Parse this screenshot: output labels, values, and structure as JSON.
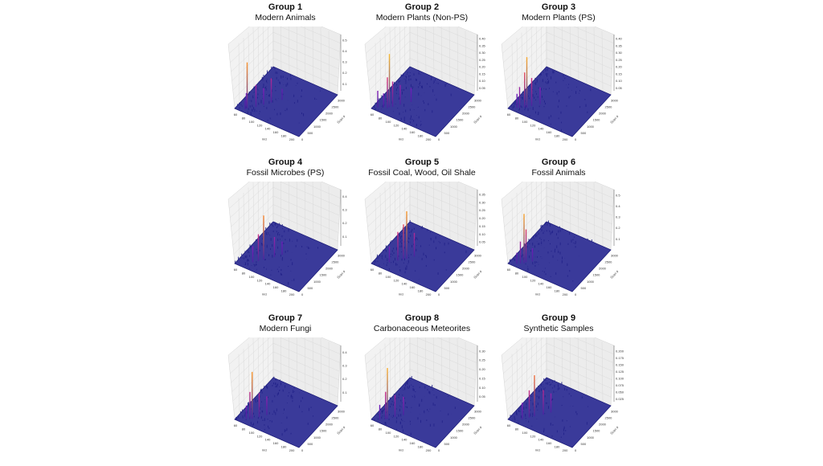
{
  "chart_data": [
    {
      "type": "surface",
      "title": "Group 1",
      "subtitle": "Modern Animals",
      "xlabel": "m/z",
      "ylabel": "Scan #",
      "xlim": [
        50,
        210
      ],
      "ylim": [
        0,
        3200
      ],
      "zlim": [
        0,
        0.55
      ],
      "xticks": [
        "60",
        "80",
        "100",
        "120",
        "140",
        "160",
        "180",
        "200"
      ],
      "yticks": [
        "0",
        "500",
        "1000",
        "1500",
        "2000",
        "2500",
        "3000"
      ],
      "zticks": [
        "0.1",
        "0.2",
        "0.3",
        "0.4",
        "0.5"
      ],
      "peaks": [
        [
          72,
          300,
          0.42
        ],
        [
          67,
          400,
          0.12
        ],
        [
          85,
          600,
          0.2
        ],
        [
          95,
          900,
          0.15
        ],
        [
          105,
          1200,
          0.22
        ],
        [
          70,
          200,
          0.08
        ],
        [
          120,
          1600,
          0.1
        ]
      ]
    },
    {
      "type": "surface",
      "title": "Group 2",
      "subtitle": "Modern Plants (Non-PS)",
      "xlabel": "m/z",
      "ylabel": "Scan #",
      "xlim": [
        50,
        210
      ],
      "ylim": [
        0,
        3200
      ],
      "zlim": [
        0,
        0.43
      ],
      "xticks": [
        "60",
        "80",
        "100",
        "120",
        "140",
        "160",
        "180",
        "200"
      ],
      "yticks": [
        "0",
        "500",
        "1000",
        "1500",
        "2000",
        "2500",
        "3000"
      ],
      "zticks": [
        "0.05",
        "0.10",
        "0.15",
        "0.20",
        "0.25",
        "0.30",
        "0.35",
        "0.40"
      ],
      "peaks": [
        [
          80,
          500,
          0.38
        ],
        [
          78,
          400,
          0.22
        ],
        [
          85,
          600,
          0.18
        ],
        [
          60,
          200,
          0.12
        ],
        [
          95,
          900,
          0.14
        ],
        [
          110,
          1300,
          0.1
        ],
        [
          70,
          350,
          0.1
        ]
      ]
    },
    {
      "type": "surface",
      "title": "Group 3",
      "subtitle": "Modern Plants (PS)",
      "xlabel": "m/z",
      "ylabel": "Scan #",
      "xlim": [
        50,
        210
      ],
      "ylim": [
        0,
        3200
      ],
      "zlim": [
        0,
        0.43
      ],
      "xticks": [
        "60",
        "80",
        "100",
        "120",
        "140",
        "160",
        "180",
        "200"
      ],
      "yticks": [
        "0",
        "500",
        "1000",
        "1500",
        "2000",
        "2500",
        "3000"
      ],
      "zticks": [
        "0.05",
        "0.10",
        "0.15",
        "0.20",
        "0.25",
        "0.30",
        "0.35",
        "0.40"
      ],
      "peaks": [
        [
          82,
          500,
          0.36
        ],
        [
          78,
          450,
          0.25
        ],
        [
          88,
          700,
          0.2
        ],
        [
          70,
          300,
          0.15
        ],
        [
          100,
          1000,
          0.12
        ],
        [
          65,
          250,
          0.1
        ]
      ]
    },
    {
      "type": "surface",
      "title": "Group 4",
      "subtitle": "Fossil Microbes (PS)",
      "xlabel": "m/z",
      "ylabel": "Scan #",
      "xlim": [
        50,
        210
      ],
      "ylim": [
        0,
        3200
      ],
      "zlim": [
        0,
        0.45
      ],
      "xticks": [
        "60",
        "80",
        "100",
        "120",
        "140",
        "160",
        "180",
        "200"
      ],
      "yticks": [
        "0",
        "500",
        "1000",
        "1500",
        "2000",
        "2500",
        "3000"
      ],
      "zticks": [
        "0.1",
        "0.2",
        "0.3",
        "0.4"
      ],
      "peaks": [
        [
          95,
          900,
          0.33
        ],
        [
          88,
          700,
          0.2
        ],
        [
          110,
          1300,
          0.15
        ],
        [
          80,
          500,
          0.12
        ],
        [
          120,
          1600,
          0.1
        ]
      ]
    },
    {
      "type": "surface",
      "title": "Group 5",
      "subtitle": "Fossil Coal, Wood, Oil Shale",
      "xlabel": "m/z",
      "ylabel": "Scan #",
      "xlim": [
        50,
        210
      ],
      "ylim": [
        0,
        3200
      ],
      "zlim": [
        0,
        0.38
      ],
      "xticks": [
        "60",
        "80",
        "100",
        "120",
        "140",
        "160",
        "180",
        "200"
      ],
      "yticks": [
        "0",
        "500",
        "1000",
        "1500",
        "2000",
        "2500",
        "3000"
      ],
      "zticks": [
        "0.05",
        "0.10",
        "0.15",
        "0.20",
        "0.25",
        "0.30",
        "0.35"
      ],
      "peaks": [
        [
          105,
          1100,
          0.3
        ],
        [
          100,
          1000,
          0.22
        ],
        [
          92,
          800,
          0.18
        ],
        [
          115,
          1400,
          0.15
        ],
        [
          80,
          500,
          0.1
        ]
      ]
    },
    {
      "type": "surface",
      "title": "Group 6",
      "subtitle": "Fossil Animals",
      "xlabel": "m/z",
      "ylabel": "Scan #",
      "xlim": [
        50,
        210
      ],
      "ylim": [
        0,
        3200
      ],
      "zlim": [
        0,
        0.55
      ],
      "xticks": [
        "60",
        "80",
        "100",
        "120",
        "140",
        "160",
        "180",
        "200"
      ],
      "yticks": [
        "0",
        "500",
        "1000",
        "1500",
        "2000",
        "2500",
        "3000"
      ],
      "zticks": [
        "0.1",
        "0.2",
        "0.3",
        "0.4",
        "0.5"
      ],
      "peaks": [
        [
          78,
          400,
          0.45
        ],
        [
          80,
          500,
          0.3
        ],
        [
          72,
          300,
          0.2
        ],
        [
          90,
          700,
          0.12
        ],
        [
          66,
          200,
          0.1
        ]
      ]
    },
    {
      "type": "surface",
      "title": "Group 7",
      "subtitle": "Modern Fungi",
      "xlabel": "m/z",
      "ylabel": "Scan #",
      "xlim": [
        50,
        210
      ],
      "ylim": [
        0,
        3200
      ],
      "zlim": [
        0,
        0.45
      ],
      "xticks": [
        "60",
        "80",
        "100",
        "120",
        "140",
        "160",
        "180",
        "200"
      ],
      "yticks": [
        "0",
        "500",
        "1000",
        "1500",
        "2000",
        "2500",
        "3000"
      ],
      "zticks": [
        "0.1",
        "0.2",
        "0.3",
        "0.4"
      ],
      "peaks": [
        [
          80,
          450,
          0.35
        ],
        [
          76,
          400,
          0.2
        ],
        [
          90,
          700,
          0.18
        ],
        [
          100,
          1000,
          0.14
        ],
        [
          70,
          300,
          0.1
        ]
      ]
    },
    {
      "type": "surface",
      "title": "Group 8",
      "subtitle": "Carbonaceous Meteorites",
      "xlabel": "m/z",
      "ylabel": "Scan #",
      "xlim": [
        50,
        210
      ],
      "ylim": [
        0,
        3200
      ],
      "zlim": [
        0,
        0.33
      ],
      "xticks": [
        "60",
        "80",
        "100",
        "120",
        "140",
        "160",
        "180",
        "200"
      ],
      "yticks": [
        "0",
        "500",
        "1000",
        "1500",
        "2000",
        "2500",
        "3000"
      ],
      "zticks": [
        "0.05",
        "0.10",
        "0.15",
        "0.20",
        "0.25",
        "0.30"
      ],
      "peaks": [
        [
          78,
          400,
          0.28
        ],
        [
          75,
          350,
          0.15
        ],
        [
          88,
          700,
          0.12
        ],
        [
          100,
          1000,
          0.1
        ],
        [
          65,
          200,
          0.08
        ]
      ]
    },
    {
      "type": "surface",
      "title": "Group 9",
      "subtitle": "Synthetic Samples",
      "xlabel": "m/z",
      "ylabel": "Scan #",
      "xlim": [
        50,
        210
      ],
      "ylim": [
        0,
        3200
      ],
      "zlim": [
        0,
        0.22
      ],
      "xticks": [
        "60",
        "80",
        "100",
        "120",
        "140",
        "160",
        "180",
        "200"
      ],
      "yticks": [
        "0",
        "500",
        "1000",
        "1500",
        "2000",
        "2500",
        "3000"
      ],
      "zticks": [
        "0.025",
        "0.050",
        "0.075",
        "0.100",
        "0.125",
        "0.150",
        "0.175",
        "0.200"
      ],
      "peaks": [
        [
          92,
          800,
          0.15
        ],
        [
          85,
          600,
          0.1
        ],
        [
          105,
          1100,
          0.09
        ],
        [
          115,
          1400,
          0.07
        ],
        [
          75,
          350,
          0.06
        ]
      ]
    }
  ]
}
